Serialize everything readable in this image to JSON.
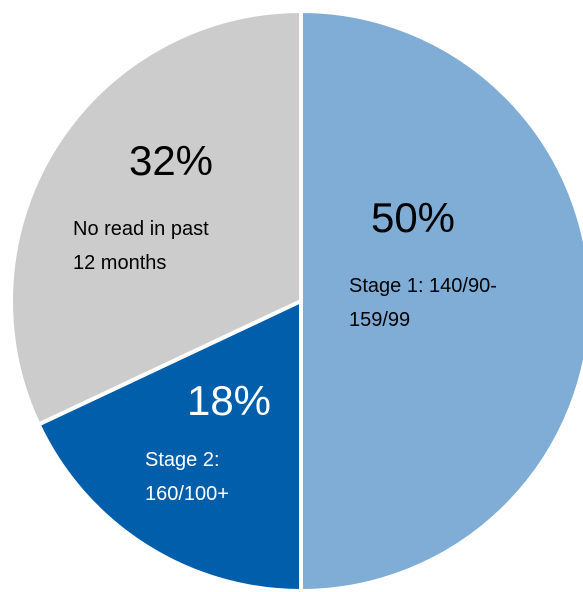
{
  "chart_data": {
    "type": "pie",
    "start_angle_deg": 0,
    "direction": "clockwise",
    "slices": [
      {
        "percent_label": "50%",
        "value": 50,
        "label_lines": [
          "Stage 1: 140/90-",
          "159/99"
        ],
        "color": "#7fadd6",
        "text_color": "#000000"
      },
      {
        "percent_label": "18%",
        "value": 18,
        "label_lines": [
          "Stage 2:",
          "160/100+"
        ],
        "color": "#005eab",
        "text_color": "#ffffff"
      },
      {
        "percent_label": "32%",
        "value": 32,
        "label_lines": [
          "No read in past",
          "12 months"
        ],
        "color": "#cccccc",
        "text_color": "#000000"
      }
    ]
  }
}
